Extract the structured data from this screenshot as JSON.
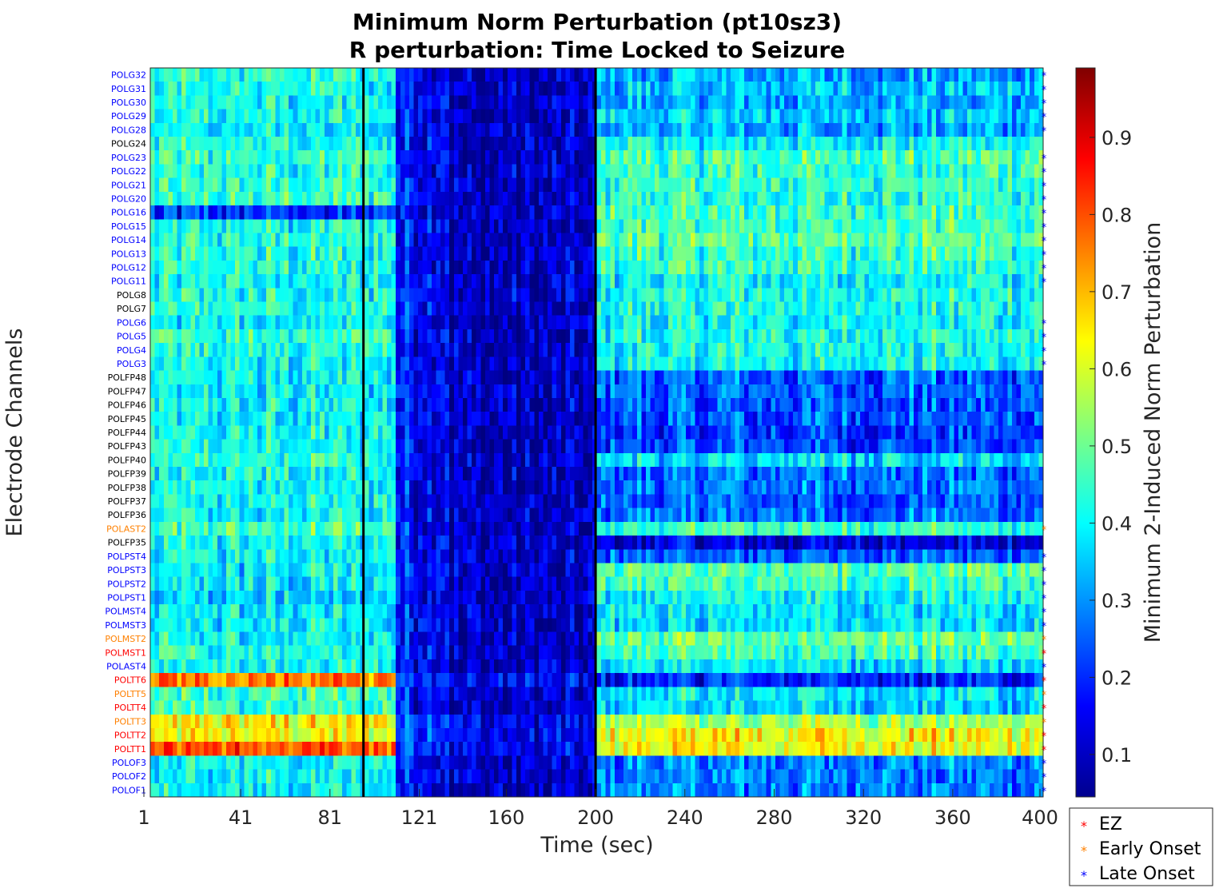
{
  "chart_data": {
    "type": "heatmap",
    "title_line1": "Minimum Norm Perturbation (pt10sz3)",
    "title_line2": "R perturbation:  Time Locked to Seizure",
    "xlabel": "Time (sec)",
    "ylabel": "Electrode Channels",
    "colorbar_label": "Minimum 2-Induced Norm Perturbation",
    "colormap": "jet",
    "xlim": [
      1,
      400
    ],
    "x_ticks": [
      1,
      41,
      81,
      121,
      160,
      200,
      240,
      280,
      320,
      360,
      400
    ],
    "colorbar_range": [
      0.045,
      0.99
    ],
    "colorbar_ticks": [
      0.1,
      0.2,
      0.3,
      0.4,
      0.5,
      0.6,
      0.7,
      0.8,
      0.9
    ],
    "vertical_markers": [
      96,
      200
    ],
    "channels": [
      {
        "name": "POLG32",
        "group": "late"
      },
      {
        "name": "POLG31",
        "group": "late"
      },
      {
        "name": "POLG30",
        "group": "late"
      },
      {
        "name": "POLG29",
        "group": "late"
      },
      {
        "name": "POLG28",
        "group": "late"
      },
      {
        "name": "POLG24",
        "group": "none"
      },
      {
        "name": "POLG23",
        "group": "late"
      },
      {
        "name": "POLG22",
        "group": "late"
      },
      {
        "name": "POLG21",
        "group": "late"
      },
      {
        "name": "POLG20",
        "group": "late"
      },
      {
        "name": "POLG16",
        "group": "late"
      },
      {
        "name": "POLG15",
        "group": "late"
      },
      {
        "name": "POLG14",
        "group": "late"
      },
      {
        "name": "POLG13",
        "group": "late"
      },
      {
        "name": "POLG12",
        "group": "late"
      },
      {
        "name": "POLG11",
        "group": "late"
      },
      {
        "name": "POLG8",
        "group": "none"
      },
      {
        "name": "POLG7",
        "group": "none"
      },
      {
        "name": "POLG6",
        "group": "late"
      },
      {
        "name": "POLG5",
        "group": "late"
      },
      {
        "name": "POLG4",
        "group": "late"
      },
      {
        "name": "POLG3",
        "group": "late"
      },
      {
        "name": "POLFP48",
        "group": "none"
      },
      {
        "name": "POLFP47",
        "group": "none"
      },
      {
        "name": "POLFP46",
        "group": "none"
      },
      {
        "name": "POLFP45",
        "group": "none"
      },
      {
        "name": "POLFP44",
        "group": "none"
      },
      {
        "name": "POLFP43",
        "group": "none"
      },
      {
        "name": "POLFP40",
        "group": "none"
      },
      {
        "name": "POLFP39",
        "group": "none"
      },
      {
        "name": "POLFP38",
        "group": "none"
      },
      {
        "name": "POLFP37",
        "group": "none"
      },
      {
        "name": "POLFP36",
        "group": "none"
      },
      {
        "name": "POLAST2",
        "group": "early"
      },
      {
        "name": "POLFP35",
        "group": "none"
      },
      {
        "name": "POLPST4",
        "group": "late"
      },
      {
        "name": "POLPST3",
        "group": "late"
      },
      {
        "name": "POLPST2",
        "group": "late"
      },
      {
        "name": "POLPST1",
        "group": "late"
      },
      {
        "name": "POLMST4",
        "group": "late"
      },
      {
        "name": "POLMST3",
        "group": "late"
      },
      {
        "name": "POLMST2",
        "group": "early"
      },
      {
        "name": "POLMST1",
        "group": "ez"
      },
      {
        "name": "POLAST4",
        "group": "late"
      },
      {
        "name": "POLTT6",
        "group": "ez"
      },
      {
        "name": "POLTT5",
        "group": "early"
      },
      {
        "name": "POLTT4",
        "group": "ez"
      },
      {
        "name": "POLTT3",
        "group": "early"
      },
      {
        "name": "POLTT2",
        "group": "ez"
      },
      {
        "name": "POLTT1",
        "group": "ez"
      },
      {
        "name": "POLOF3",
        "group": "late"
      },
      {
        "name": "POLOF2",
        "group": "late"
      },
      {
        "name": "POLOF1",
        "group": "late"
      }
    ],
    "channel_mean_levels": {
      "pre": [
        0.42,
        0.41,
        0.4,
        0.41,
        0.38,
        0.42,
        0.44,
        0.42,
        0.43,
        0.45,
        0.2,
        0.4,
        0.42,
        0.43,
        0.42,
        0.4,
        0.41,
        0.42,
        0.4,
        0.45,
        0.42,
        0.4,
        0.4,
        0.39,
        0.4,
        0.39,
        0.4,
        0.4,
        0.42,
        0.4,
        0.4,
        0.4,
        0.4,
        0.47,
        0.4,
        0.4,
        0.38,
        0.38,
        0.36,
        0.38,
        0.38,
        0.4,
        0.42,
        0.4,
        0.75,
        0.45,
        0.45,
        0.65,
        0.62,
        0.8,
        0.4,
        0.4,
        0.4
      ],
      "post": [
        0.32,
        0.34,
        0.33,
        0.35,
        0.32,
        0.4,
        0.47,
        0.45,
        0.45,
        0.43,
        0.45,
        0.45,
        0.48,
        0.45,
        0.45,
        0.4,
        0.42,
        0.42,
        0.4,
        0.42,
        0.42,
        0.4,
        0.25,
        0.26,
        0.24,
        0.24,
        0.22,
        0.22,
        0.38,
        0.26,
        0.27,
        0.26,
        0.27,
        0.45,
        0.14,
        0.25,
        0.48,
        0.45,
        0.4,
        0.38,
        0.38,
        0.5,
        0.46,
        0.38,
        0.2,
        0.38,
        0.36,
        0.55,
        0.64,
        0.63,
        0.28,
        0.28,
        0.28
      ]
    },
    "legend": {
      "position": "bottom-right",
      "entries": [
        {
          "label": "EZ",
          "group": "ez"
        },
        {
          "label": "Early Onset",
          "group": "early"
        },
        {
          "label": "Late Onset",
          "group": "late"
        }
      ]
    },
    "group_colors": {
      "ez": "#ff0000",
      "early": "#ff8000",
      "late": "#0000ff",
      "none": "#000000"
    }
  }
}
